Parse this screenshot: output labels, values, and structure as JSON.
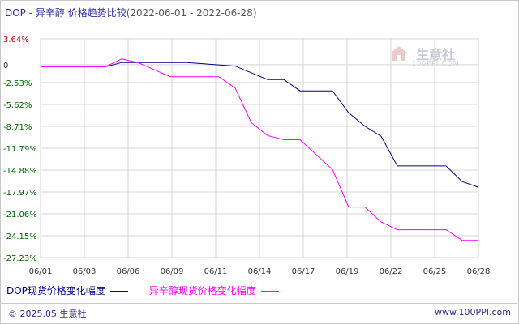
{
  "header": {
    "title": "DOP - 异辛醇 价格趋势比较",
    "date_range": "(2022-06-01 - 2022-06-28)"
  },
  "watermark": {
    "brand": "生意社",
    "url": "100PPI.COM"
  },
  "footer": {
    "copyright": "© 2025.05 生意社",
    "site": "www.100PPI.com"
  },
  "colors": {
    "dop": "#000080",
    "octanol": "#ff00ff",
    "grid": "#d4d4d4",
    "tick_red": "#c00000",
    "tick_green": "#006400"
  },
  "chart_data": {
    "type": "line",
    "title": "DOP - 异辛醇 价格趋势比较",
    "xlabel": "",
    "ylabel": "",
    "x_ticks": [
      "06/01",
      "06/03",
      "06/06",
      "06/09",
      "06/11",
      "06/14",
      "06/17",
      "06/19",
      "06/22",
      "06/25",
      "06/28"
    ],
    "y_ticks": [
      "3.64%",
      "0",
      "-2.53%",
      "-5.62%",
      "-8.71%",
      "-11.79%",
      "-14.88%",
      "-17.97%",
      "-21.06%",
      "-24.15%",
      "-27.23%"
    ],
    "y_tick_values": [
      3.64,
      0,
      -2.53,
      -5.62,
      -8.71,
      -11.79,
      -14.88,
      -17.97,
      -21.06,
      -24.15,
      -27.23
    ],
    "ylim": [
      -27.23,
      3.64
    ],
    "xlim": [
      "2022-06-01",
      "2022-06-28"
    ],
    "grid": true,
    "legend_position": "bottom",
    "series": [
      {
        "name": "DOP现货价格变化幅度",
        "color": "#000080",
        "x": [
          "2022-06-01",
          "2022-06-05",
          "2022-06-06",
          "2022-06-10",
          "2022-06-13",
          "2022-06-15",
          "2022-06-16",
          "2022-06-17",
          "2022-06-19",
          "2022-06-20",
          "2022-06-21",
          "2022-06-22",
          "2022-06-23",
          "2022-06-24",
          "2022-06-25",
          "2022-06-26",
          "2022-06-27",
          "2022-06-28"
        ],
        "values": [
          -0.3,
          -0.3,
          0.3,
          0.3,
          -0.2,
          -2.1,
          -2.1,
          -3.7,
          -3.7,
          -6.8,
          -8.7,
          -10.1,
          -14.3,
          -14.3,
          -14.3,
          -14.3,
          -16.5,
          -17.3
        ]
      },
      {
        "name": "异辛醇现货价格变化幅度",
        "color": "#ff00ff",
        "x": [
          "2022-06-01",
          "2022-06-05",
          "2022-06-06",
          "2022-06-07",
          "2022-06-09",
          "2022-06-12",
          "2022-06-13",
          "2022-06-14",
          "2022-06-15",
          "2022-06-16",
          "2022-06-17",
          "2022-06-19",
          "2022-06-20",
          "2022-06-21",
          "2022-06-22",
          "2022-06-23",
          "2022-06-24",
          "2022-06-25",
          "2022-06-26",
          "2022-06-27",
          "2022-06-28"
        ],
        "values": [
          -0.3,
          -0.3,
          0.8,
          0.3,
          -1.7,
          -1.7,
          -3.3,
          -8.2,
          -10.0,
          -10.6,
          -10.6,
          -14.8,
          -20.1,
          -20.1,
          -22.2,
          -23.3,
          -23.3,
          -23.3,
          -23.3,
          -24.8,
          -24.8
        ]
      }
    ]
  }
}
